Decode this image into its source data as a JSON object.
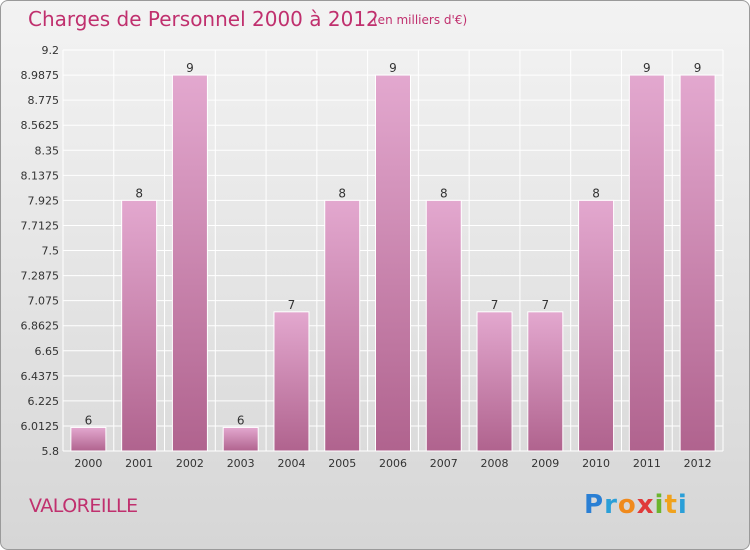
{
  "header": {
    "title": "Charges de Personnel 2000 à 2012",
    "subtitle": "(en milliers d'€)"
  },
  "commune": "VALOREILLE",
  "logo": {
    "text": "Proxiti",
    "letters": [
      {
        "ch": "P",
        "color": "#2a7fd4"
      },
      {
        "ch": "r",
        "color": "#2a9fd8"
      },
      {
        "ch": "o",
        "color": "#f08a1c"
      },
      {
        "ch": "x",
        "color": "#e03a3a"
      },
      {
        "ch": "i",
        "color": "#6cb52e"
      },
      {
        "ch": "t",
        "color": "#f0a21c"
      },
      {
        "ch": "i",
        "color": "#2a9fd8"
      }
    ]
  },
  "colors": {
    "bar_top": "#e3a8cf",
    "bar_bottom": "#b0638e",
    "grid": "#ffffff",
    "accent": "#c0306e"
  },
  "chart_data": {
    "type": "bar",
    "title": "Charges de Personnel 2000 à 2012",
    "subtitle": "(en milliers d'€)",
    "categories": [
      "2000",
      "2001",
      "2002",
      "2003",
      "2004",
      "2005",
      "2006",
      "2007",
      "2008",
      "2009",
      "2010",
      "2011",
      "2012"
    ],
    "values": [
      6,
      8,
      9,
      6,
      7,
      8,
      9,
      8,
      7,
      7,
      8,
      9,
      9
    ],
    "bar_heights": [
      6.0,
      7.925,
      8.9875,
      6.0,
      6.98,
      7.925,
      8.9875,
      7.925,
      6.98,
      6.98,
      7.925,
      8.9875,
      8.9875
    ],
    "yticks": [
      "9.2",
      "8.9875",
      "8.775",
      "8.5625",
      "8.35",
      "8.1375",
      "7.925",
      "7.7125",
      "7.5",
      "7.2875",
      "7.075",
      "6.8625",
      "6.65",
      "6.4375",
      "6.225",
      "6.0125",
      "5.8"
    ],
    "ylim": [
      5.8,
      9.2
    ],
    "grid": true,
    "legend": "none"
  }
}
